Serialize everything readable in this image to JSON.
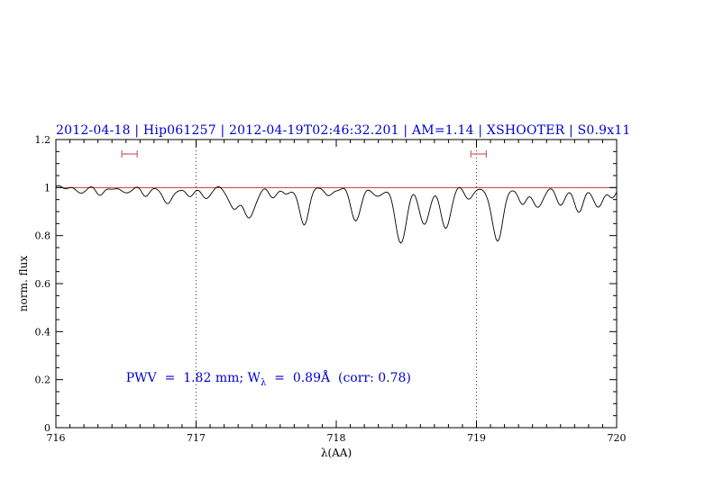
{
  "colors": {
    "title": "#0000cc",
    "annotation": "#0000cc",
    "continuum": "#cc3333",
    "marker": "#cc6666",
    "spectrum": "#000000",
    "vline": "#333333",
    "axis": "#000000"
  },
  "chart_data": {
    "type": "line",
    "title": "2012-04-18 | Hip061257 | 2012-04-19T02:46:32.201 | AM=1.14 | XSHOOTER | S0.9x11",
    "xlabel": "λ(AA)",
    "ylabel": "norm. flux",
    "xlim": [
      716,
      720
    ],
    "ylim": [
      0,
      1.2
    ],
    "x_ticks": [
      716,
      717,
      718,
      719,
      720
    ],
    "x_tick_labels": [
      "716",
      "717",
      "718",
      "719",
      "720"
    ],
    "y_ticks": [
      0,
      0.2,
      0.4,
      0.6,
      0.8,
      1,
      1.2
    ],
    "y_tick_labels": [
      "0",
      "0.2",
      "0.4",
      "0.6",
      "0.8",
      "1",
      "1.2"
    ],
    "x_minor_step": 0.1,
    "y_minor_step": 0.05,
    "grid": "off",
    "dotted_vlines": [
      717,
      719
    ],
    "continuum_level": 1.0,
    "noise_amplitude": 0.004,
    "absorption_lines": [
      [
        716.18,
        0.02,
        0.03
      ],
      [
        716.32,
        0.03,
        0.03
      ],
      [
        716.5,
        0.025,
        0.03
      ],
      [
        716.64,
        0.03,
        0.03
      ],
      [
        716.8,
        0.07,
        0.035
      ],
      [
        716.95,
        0.035,
        0.03
      ],
      [
        717.07,
        0.05,
        0.03
      ],
      [
        717.27,
        0.09,
        0.035
      ],
      [
        717.38,
        0.13,
        0.04
      ],
      [
        717.55,
        0.04,
        0.03
      ],
      [
        717.64,
        0.03,
        0.025
      ],
      [
        717.77,
        0.15,
        0.035
      ],
      [
        717.95,
        0.035,
        0.03
      ],
      [
        718.14,
        0.14,
        0.035
      ],
      [
        718.3,
        0.04,
        0.03
      ],
      [
        718.46,
        0.23,
        0.04
      ],
      [
        718.63,
        0.16,
        0.035
      ],
      [
        718.78,
        0.17,
        0.035
      ],
      [
        718.95,
        0.05,
        0.03
      ],
      [
        719.15,
        0.22,
        0.04
      ],
      [
        719.33,
        0.07,
        0.03
      ],
      [
        719.44,
        0.09,
        0.033
      ],
      [
        719.6,
        0.07,
        0.03
      ],
      [
        719.73,
        0.1,
        0.035
      ],
      [
        719.87,
        0.08,
        0.033
      ],
      [
        719.97,
        0.04,
        0.03
      ]
    ],
    "range_markers": [
      {
        "x1": 716.47,
        "x2": 716.58,
        "y": 1.14
      },
      {
        "x1": 718.96,
        "x2": 719.07,
        "y": 1.14
      }
    ],
    "annotation": {
      "prefix": "PWV  =  1.82 mm; W",
      "subscript": "λ",
      "suffix": "  =  0.89Å  (corr: 0.78)",
      "x": 716.5,
      "y": 0.2
    }
  }
}
